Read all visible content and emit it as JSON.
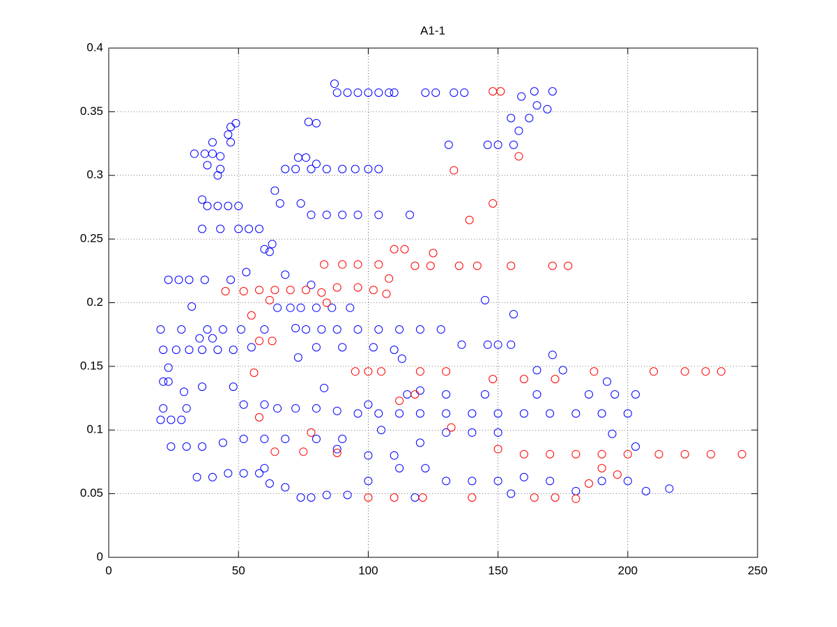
{
  "chart_data": {
    "type": "scatter",
    "title": "A1-1",
    "xlim": [
      0,
      250
    ],
    "ylim": [
      0,
      0.4
    ],
    "xticks": [
      0,
      50,
      100,
      150,
      200,
      250
    ],
    "yticks": [
      0,
      0.05,
      0.1,
      0.15,
      0.2,
      0.25,
      0.3,
      0.35,
      0.4
    ],
    "grid": true,
    "series": [
      {
        "color": "#0000ff",
        "x": [
          87,
          88,
          92,
          96,
          100,
          104,
          108,
          110,
          122,
          126,
          133,
          137,
          171,
          164,
          159,
          165,
          169,
          155,
          162,
          77,
          80,
          47,
          49,
          46,
          158,
          40,
          47,
          131,
          146,
          150,
          156,
          33,
          37,
          40,
          43,
          73,
          76,
          80,
          38,
          43,
          68,
          72,
          78,
          84,
          90,
          95,
          100,
          104,
          42,
          64,
          36,
          38,
          42,
          46,
          50,
          66,
          74,
          78,
          84,
          90,
          96,
          104,
          116,
          43,
          36,
          50,
          54,
          58,
          63,
          62,
          68,
          60,
          23,
          27,
          31,
          37,
          47,
          53,
          78,
          145,
          32,
          65,
          70,
          74,
          80,
          86,
          93,
          156,
          20,
          28,
          38,
          44,
          51,
          60,
          76,
          82,
          88,
          96,
          104,
          112,
          120,
          128,
          35,
          40,
          21,
          26,
          31,
          36,
          42,
          48,
          55,
          80,
          90,
          102,
          110,
          136,
          146,
          150,
          155,
          73,
          113,
          171,
          23,
          21,
          23,
          36,
          48,
          83,
          120,
          29,
          30,
          21,
          65,
          72,
          80,
          88,
          96,
          104,
          112,
          120,
          130,
          140,
          150,
          160,
          170,
          180,
          190,
          20,
          24,
          28,
          52,
          60,
          100,
          115,
          130,
          145,
          165,
          185,
          195,
          203,
          165,
          175,
          192,
          200,
          24,
          30,
          36,
          44,
          52,
          60,
          68,
          80,
          90,
          100,
          110,
          120,
          130,
          140,
          150,
          194,
          203,
          34,
          40,
          46,
          52,
          58,
          62,
          68,
          74,
          78,
          84,
          92,
          100,
          112,
          122,
          130,
          140,
          150,
          160,
          170,
          190,
          200,
          207,
          216,
          105,
          60,
          180,
          155,
          118,
          88,
          72
        ],
        "values": [
          0.372,
          0.365,
          0.365,
          0.365,
          0.365,
          0.365,
          0.365,
          0.365,
          0.365,
          0.365,
          0.365,
          0.365,
          0.366,
          0.366,
          0.362,
          0.355,
          0.352,
          0.345,
          0.345,
          0.342,
          0.341,
          0.338,
          0.341,
          0.332,
          0.335,
          0.326,
          0.326,
          0.324,
          0.324,
          0.324,
          0.324,
          0.317,
          0.317,
          0.317,
          0.315,
          0.314,
          0.314,
          0.309,
          0.308,
          0.305,
          0.305,
          0.305,
          0.305,
          0.305,
          0.305,
          0.305,
          0.305,
          0.305,
          0.3,
          0.288,
          0.281,
          0.276,
          0.276,
          0.276,
          0.276,
          0.278,
          0.278,
          0.269,
          0.269,
          0.269,
          0.269,
          0.269,
          0.269,
          0.258,
          0.258,
          0.258,
          0.258,
          0.258,
          0.246,
          0.24,
          0.222,
          0.242,
          0.218,
          0.218,
          0.218,
          0.218,
          0.218,
          0.224,
          0.214,
          0.202,
          0.197,
          0.196,
          0.196,
          0.196,
          0.196,
          0.196,
          0.196,
          0.191,
          0.179,
          0.179,
          0.179,
          0.179,
          0.179,
          0.179,
          0.179,
          0.179,
          0.179,
          0.179,
          0.179,
          0.179,
          0.179,
          0.179,
          0.172,
          0.172,
          0.163,
          0.163,
          0.163,
          0.163,
          0.163,
          0.163,
          0.165,
          0.165,
          0.165,
          0.165,
          0.163,
          0.167,
          0.167,
          0.167,
          0.167,
          0.157,
          0.156,
          0.159,
          0.149,
          0.138,
          0.138,
          0.134,
          0.134,
          0.133,
          0.131,
          0.13,
          0.117,
          0.117,
          0.117,
          0.117,
          0.117,
          0.115,
          0.113,
          0.113,
          0.113,
          0.113,
          0.113,
          0.113,
          0.113,
          0.113,
          0.113,
          0.113,
          0.113,
          0.108,
          0.108,
          0.108,
          0.12,
          0.12,
          0.12,
          0.128,
          0.128,
          0.128,
          0.128,
          0.128,
          0.128,
          0.128,
          0.147,
          0.147,
          0.138,
          0.113,
          0.087,
          0.087,
          0.087,
          0.09,
          0.093,
          0.093,
          0.093,
          0.093,
          0.093,
          0.08,
          0.08,
          0.09,
          0.098,
          0.098,
          0.098,
          0.097,
          0.087,
          0.063,
          0.063,
          0.066,
          0.066,
          0.066,
          0.058,
          0.055,
          0.047,
          0.047,
          0.049,
          0.049,
          0.06,
          0.07,
          0.07,
          0.06,
          0.06,
          0.06,
          0.063,
          0.06,
          0.06,
          0.06,
          0.052,
          0.054,
          0.1,
          0.07,
          0.052,
          0.05,
          0.047,
          0.085,
          0.18
        ]
      },
      {
        "color": "#ff0000",
        "x": [
          148,
          151,
          133,
          148,
          158,
          139,
          110,
          114,
          125,
          83,
          90,
          96,
          104,
          118,
          124,
          135,
          142,
          155,
          171,
          177,
          108,
          45,
          52,
          58,
          64,
          70,
          76,
          82,
          88,
          96,
          102,
          107,
          62,
          84,
          55,
          58,
          56,
          95,
          100,
          105,
          120,
          130,
          148,
          160,
          172,
          187,
          210,
          222,
          230,
          236,
          118,
          58,
          112,
          132,
          78,
          88,
          160,
          170,
          180,
          190,
          200,
          212,
          222,
          232,
          244,
          64,
          75,
          100,
          110,
          121,
          140,
          164,
          172,
          180,
          185,
          190,
          196,
          150,
          63
        ],
        "values": [
          0.366,
          0.366,
          0.304,
          0.278,
          0.315,
          0.265,
          0.242,
          0.242,
          0.239,
          0.23,
          0.23,
          0.23,
          0.23,
          0.229,
          0.229,
          0.229,
          0.229,
          0.229,
          0.229,
          0.229,
          0.219,
          0.209,
          0.209,
          0.21,
          0.21,
          0.21,
          0.21,
          0.208,
          0.212,
          0.212,
          0.21,
          0.207,
          0.202,
          0.2,
          0.19,
          0.17,
          0.145,
          0.146,
          0.146,
          0.146,
          0.146,
          0.146,
          0.14,
          0.14,
          0.14,
          0.146,
          0.146,
          0.146,
          0.146,
          0.146,
          0.128,
          0.11,
          0.123,
          0.102,
          0.098,
          0.082,
          0.081,
          0.081,
          0.081,
          0.081,
          0.081,
          0.081,
          0.081,
          0.081,
          0.081,
          0.083,
          0.083,
          0.047,
          0.047,
          0.047,
          0.047,
          0.047,
          0.047,
          0.046,
          0.058,
          0.07,
          0.065,
          0.085,
          0.17
        ]
      }
    ]
  }
}
